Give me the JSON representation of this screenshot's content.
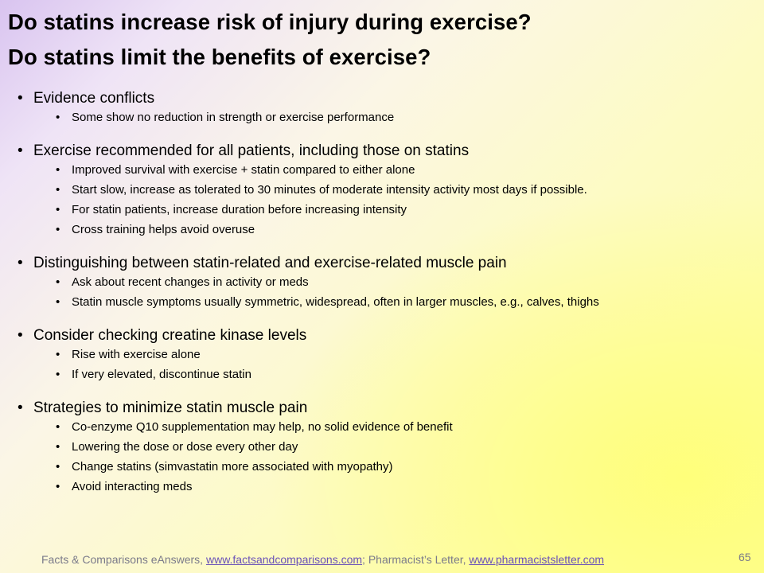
{
  "title": {
    "line1": "Do statins increase risk of injury during exercise?",
    "line2": "Do statins limit the benefits of exercise?"
  },
  "sections": [
    {
      "heading": "Evidence conflicts",
      "items": [
        "Some show no reduction in strength or exercise performance"
      ]
    },
    {
      "heading": "Exercise recommended for all patients, including those on statins",
      "items": [
        "Improved survival with exercise + statin compared to either alone",
        "Start slow, increase as tolerated to 30 minutes of moderate intensity activity most days if possible.",
        "For statin patients, increase duration before increasing intensity",
        "Cross training helps avoid overuse"
      ]
    },
    {
      "heading": "Distinguishing between statin-related and exercise-related muscle pain",
      "items": [
        "Ask about recent changes in activity or meds",
        "Statin muscle symptoms usually symmetric, widespread, often in larger muscles, e.g., calves, thighs"
      ]
    },
    {
      "heading": "Consider checking creatine kinase levels",
      "items": [
        "Rise with exercise alone",
        "If very elevated, discontinue statin"
      ]
    },
    {
      "heading": "Strategies to minimize statin muscle pain",
      "items": [
        "Co-enzyme Q10 supplementation may help, no solid evidence of benefit",
        "Lowering the dose or dose every other day",
        "Change statins (simvastatin more associated with myopathy)",
        "Avoid interacting meds"
      ]
    }
  ],
  "bullet_symbol": "•",
  "footer": {
    "prefix": "Facts & Comparisons eAnswers, ",
    "link1": "www.factsandcomparisons.com",
    "middle": "; Pharmacist’s Letter, ",
    "link2": "www.pharmacistsletter.com"
  },
  "slide_number": "65",
  "colors": {
    "link": "#6a52b8",
    "footer_text": "#7a7a8a"
  }
}
